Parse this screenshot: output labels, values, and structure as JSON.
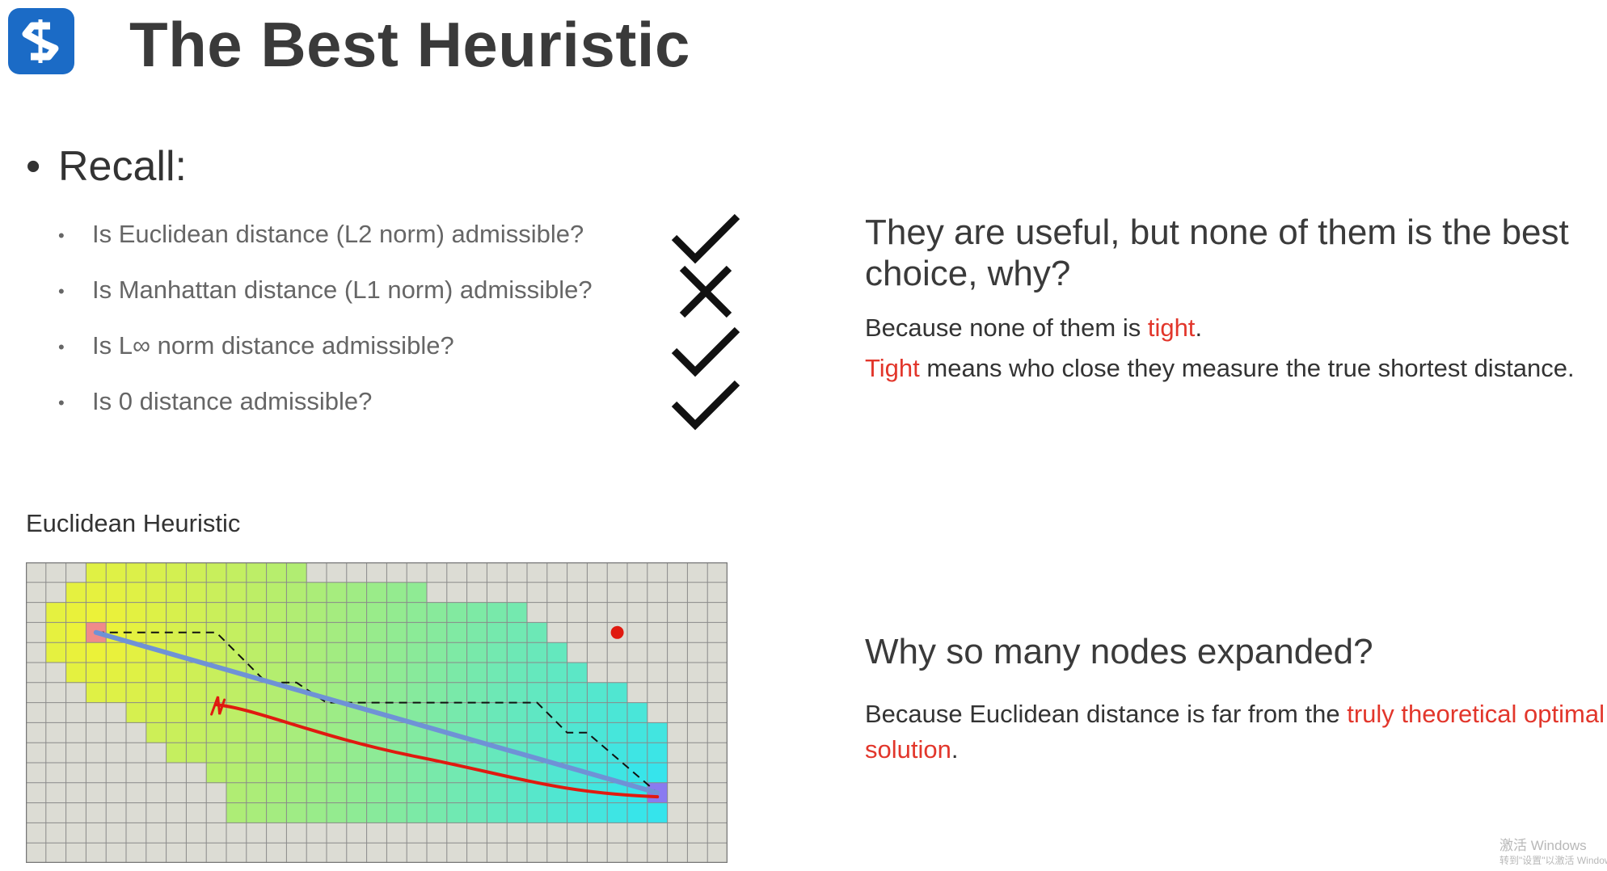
{
  "title": "The Best Heuristic",
  "recall": {
    "bullet": "•",
    "label": "Recall:"
  },
  "questions": [
    {
      "text": "Is Euclidean distance (L2 norm) admissible?",
      "answer": "check"
    },
    {
      "text": "Is Manhattan distance (L1 norm) admissible?",
      "answer": "cross"
    },
    {
      "text": "Is L∞ norm distance admissible?",
      "answer": "check"
    },
    {
      "text": "Is 0 distance admissible?",
      "answer": "check"
    }
  ],
  "sub_bullet": "•",
  "right": {
    "heading1": "They are useful, but none of them is the best choice, why?",
    "p1": {
      "before": "Because none of them is ",
      "highlight": "tight",
      "after": "."
    },
    "p2": {
      "highlight": "Tight",
      "after": " means who close they measure the true shortest distance."
    },
    "heading2": "Why so many nodes expanded?",
    "p3": {
      "before": "Because Euclidean distance is far from the ",
      "highlight": "truly theoretical optimal solution",
      "after": "."
    }
  },
  "figure": {
    "label": "Euclidean Heuristic",
    "grid": {
      "cols": 35,
      "rows": 15
    },
    "start_cell": [
      3,
      3
    ],
    "goal_cell": [
      31,
      11
    ],
    "red_dot_cell": [
      29,
      3
    ],
    "colors": {
      "background": "#dcdcd4",
      "grid_line": "#8a8a8a",
      "heat_near_start": "#f2f233",
      "heat_near_goal": "#2fe4f2",
      "start": "#f08a8a",
      "goal": "#8a7af0",
      "straight_path": "#6f92d6",
      "drawn_path": "#e01a10",
      "dashed_path": "#111111"
    }
  },
  "watermark": {
    "line1": "激活 Windows",
    "line2": "转到\"设置\"以激活 Windows"
  }
}
